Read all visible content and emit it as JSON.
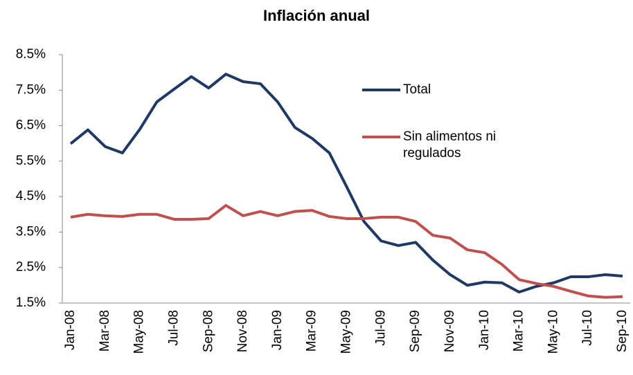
{
  "chart_data": {
    "type": "line",
    "title": "Inflación anual",
    "categories": [
      "Jan-08",
      null,
      "Mar-08",
      null,
      "May-08",
      null,
      "Jul-08",
      null,
      "Sep-08",
      null,
      "Nov-08",
      null,
      "Jan-09",
      null,
      "Mar-09",
      null,
      "May-09",
      null,
      "Jul-09",
      null,
      "Sep-09",
      null,
      "Nov-09",
      null,
      "Jan-10",
      null,
      "Mar-10",
      null,
      "May-10",
      null,
      "Jul-10",
      null,
      "Sep-10"
    ],
    "series": [
      {
        "name": "Total",
        "color": "#1f3864",
        "values": [
          5.99,
          6.38,
          5.91,
          5.73,
          6.39,
          7.17,
          7.53,
          7.88,
          7.56,
          7.95,
          7.74,
          7.68,
          7.17,
          6.45,
          6.14,
          5.73,
          4.78,
          3.8,
          3.25,
          3.12,
          3.21,
          2.71,
          2.3,
          2.0,
          2.09,
          2.07,
          1.81,
          1.97,
          2.07,
          2.24,
          2.24,
          2.3,
          2.26
        ]
      },
      {
        "name": "Sin alimentos ni regulados",
        "color": "#c0504d",
        "values": [
          3.92,
          4.0,
          3.96,
          3.94,
          4.0,
          4.0,
          3.86,
          3.86,
          3.88,
          4.25,
          3.96,
          4.08,
          3.96,
          4.08,
          4.11,
          3.94,
          3.88,
          3.88,
          3.92,
          3.92,
          3.8,
          3.41,
          3.33,
          3.0,
          2.92,
          2.59,
          2.16,
          2.05,
          1.97,
          1.83,
          1.7,
          1.66,
          1.68
        ]
      }
    ],
    "ylim": [
      1.5,
      8.5
    ],
    "yticks": [
      {
        "value": 1.5,
        "label": "1.5%"
      },
      {
        "value": 2.5,
        "label": "2.5%"
      },
      {
        "value": 3.5,
        "label": "3.5%"
      },
      {
        "value": 4.5,
        "label": "4.5%"
      },
      {
        "value": 5.5,
        "label": "5.5%"
      },
      {
        "value": 6.5,
        "label": "6.5%"
      },
      {
        "value": 7.5,
        "label": "7.5%"
      },
      {
        "value": 8.5,
        "label": "8.5%"
      }
    ],
    "grid": false,
    "legend": "right"
  }
}
